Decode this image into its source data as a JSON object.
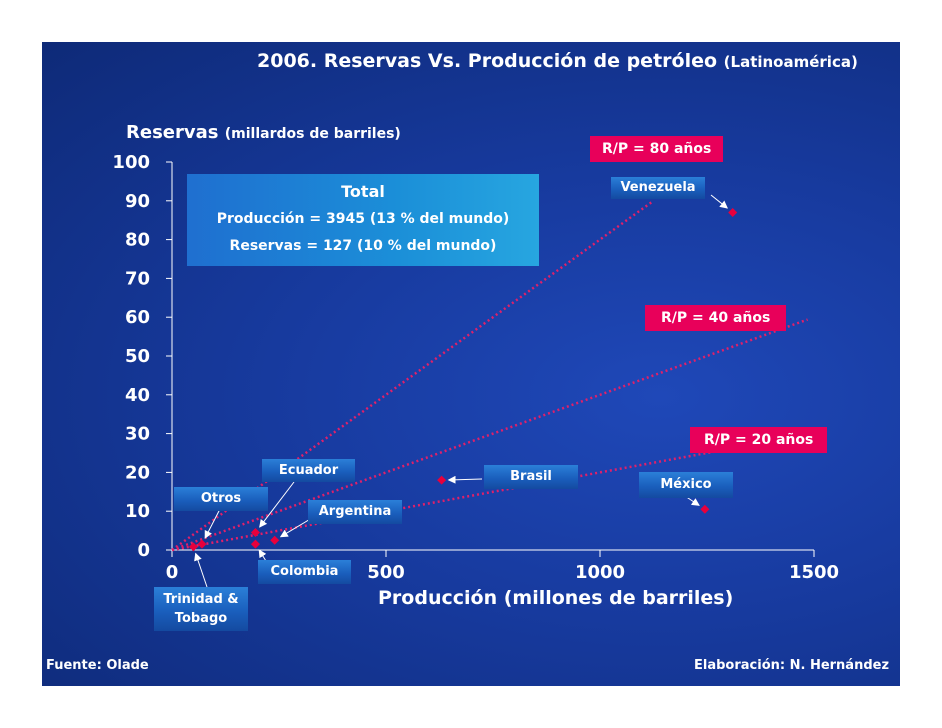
{
  "chart_data": {
    "type": "scatter",
    "title": "2006. Reservas Vs. Producción de petróleo",
    "subtitle": "(Latinoamérica)",
    "ylabel": "Reservas",
    "ylabel_units": "(millardos de barriles)",
    "xlabel": "Producción (millones de barriles)",
    "xlim": [
      0,
      1500
    ],
    "ylim": [
      0,
      100
    ],
    "x_ticks": [
      0,
      500,
      1000,
      1500
    ],
    "y_ticks": [
      0,
      10,
      20,
      30,
      40,
      50,
      60,
      70,
      80,
      90,
      100
    ],
    "points": [
      {
        "name": "Venezuela",
        "x": 1310,
        "y": 87
      },
      {
        "name": "Brasil",
        "x": 630,
        "y": 18
      },
      {
        "name": "México",
        "x": 1245,
        "y": 10.5
      },
      {
        "name": "Ecuador",
        "x": 195,
        "y": 4.5
      },
      {
        "name": "Argentina",
        "x": 240,
        "y": 2.5
      },
      {
        "name": "Colombia",
        "x": 195,
        "y": 1.5
      },
      {
        "name": "Otros",
        "x": 70,
        "y": 1.5
      },
      {
        "name": "Trinidad & Tobago",
        "x": 50,
        "y": 0.8
      }
    ],
    "ratio_lines": [
      {
        "label": "R/P = 80 años",
        "years": 80
      },
      {
        "label": "R/P = 40 años",
        "years": 40
      },
      {
        "label": "R/P = 20 años",
        "years": 20
      }
    ],
    "total_box": {
      "title": "Total",
      "production": "Producción = 3945 (13 % del mundo)",
      "reserves": "Reservas = 127 (10  % del mundo)"
    }
  },
  "labels": {
    "venezuela": "Venezuela",
    "brasil": "Brasil",
    "mexico": "México",
    "ecuador": "Ecuador",
    "argentina": "Argentina",
    "colombia": "Colombia",
    "otros": "Otros",
    "trinidad_line1": "Trinidad &",
    "trinidad_line2": "Tobago"
  },
  "footer": {
    "source": "Fuente: Olade",
    "credit": "Elaboración: N. Hernández"
  },
  "colors": {
    "marker": "#e8003c",
    "ratio_line": "#e0206a",
    "axis": "#ffffff"
  }
}
